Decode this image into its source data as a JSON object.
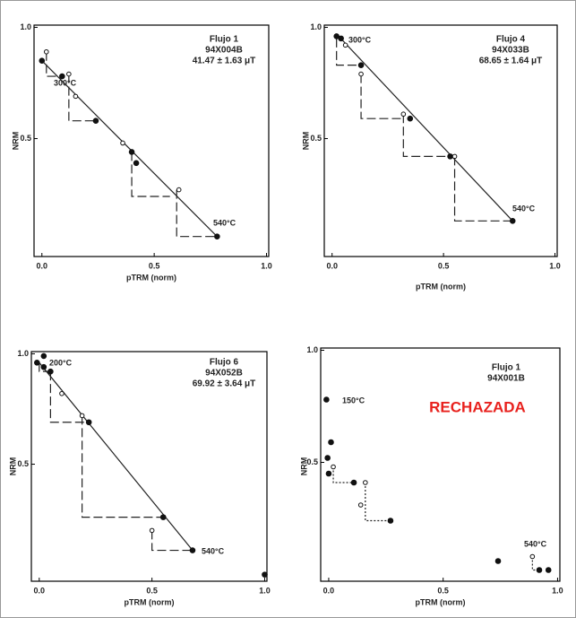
{
  "chart_data": [
    {
      "type": "scatter",
      "title_lines": [
        "Flujo  1",
        "94X004B",
        "41.47 ± 1.63 μT"
      ],
      "temp_labels": [
        "300°C",
        "540°C"
      ],
      "x_label": "pTRM (norm)",
      "y_label": "NRM",
      "xlim": [
        -0.035,
        1.01
      ],
      "ylim": [
        -0.03,
        1.01
      ],
      "xticks": [
        {
          "value": 0,
          "label": "0.0"
        },
        0.5,
        {
          "value": 1,
          "label": "1.0"
        }
      ],
      "yticks": [
        0.5,
        {
          "value": 1,
          "label": "1.0"
        }
      ],
      "points": {
        "x": [
          0,
          0.02,
          0.09,
          0.12,
          0.15,
          0.24,
          0.36,
          0.4,
          0.42,
          0.61,
          0.78
        ],
        "y": [
          0.85,
          0.89,
          0.78,
          0.79,
          0.69,
          0.58,
          0.48,
          0.44,
          0.39,
          0.27,
          0.06
        ],
        "filled": [
          true,
          false,
          true,
          false,
          false,
          true,
          false,
          true,
          true,
          false,
          true
        ]
      },
      "fit": {
        "x": [
          0,
          0.78
        ],
        "y": [
          0.85,
          0.06
        ]
      },
      "step_style": "dashed",
      "steps": [
        {
          "x": [
            0.02,
            0.02,
            0.09
          ],
          "y": [
            0.89,
            0.78,
            0.78
          ]
        },
        {
          "x": [
            0.12,
            0.12,
            0.24
          ],
          "y": [
            0.79,
            0.58,
            0.58
          ]
        },
        {
          "x": [
            0.4,
            0.4,
            0.57
          ],
          "y": [
            0.44,
            0.24,
            0.24
          ]
        },
        {
          "x": [
            0.6,
            0.6,
            0.78
          ],
          "y": [
            0.27,
            0.06,
            0.06
          ]
        }
      ]
    },
    {
      "type": "scatter",
      "title_lines": [
        "Flujo  4",
        "94X033B",
        "68.65 ± 1.64 μT"
      ],
      "temp_labels": [
        "300°C",
        "540°C"
      ],
      "x_label": "pTRM (norm)",
      "y_label": "NRM",
      "xlim": [
        -0.035,
        1.01
      ],
      "ylim": [
        -0.03,
        1.01
      ],
      "xticks": [
        {
          "value": 0,
          "label": "0.0"
        },
        0.5,
        {
          "value": 1,
          "label": "1.0"
        }
      ],
      "yticks": [
        0.5,
        {
          "value": 1,
          "label": "1.0"
        }
      ],
      "points": {
        "x": [
          0.02,
          0.04,
          0.06,
          0.13,
          0.13,
          0.32,
          0.35,
          0.53,
          0.55,
          0.81
        ],
        "y": [
          0.96,
          0.95,
          0.92,
          0.83,
          0.79,
          0.61,
          0.59,
          0.42,
          0.42,
          0.13
        ],
        "filled": [
          true,
          true,
          false,
          true,
          false,
          false,
          true,
          true,
          false,
          true
        ]
      },
      "fit": {
        "x": [
          0.02,
          0.81
        ],
        "y": [
          0.97,
          0.13
        ]
      },
      "step_style": "dashed",
      "steps": [
        {
          "x": [
            0.02,
            0.02,
            0.13
          ],
          "y": [
            0.95,
            0.83,
            0.83
          ]
        },
        {
          "x": [
            0.13,
            0.13,
            0.32
          ],
          "y": [
            0.79,
            0.59,
            0.59
          ]
        },
        {
          "x": [
            0.32,
            0.32,
            0.53
          ],
          "y": [
            0.61,
            0.42,
            0.42
          ]
        },
        {
          "x": [
            0.55,
            0.55,
            0.81
          ],
          "y": [
            0.42,
            0.13,
            0.13
          ]
        }
      ]
    },
    {
      "type": "scatter",
      "title_lines": [
        "Flujo  6",
        "94X052B",
        "69.92 ± 3.64 μT"
      ],
      "temp_labels": [
        "200°C",
        "540°C"
      ],
      "x_label": "pTRM (norm)",
      "y_label": "NRM",
      "xlim": [
        -0.035,
        1.01
      ],
      "ylim": [
        -0.03,
        1.01
      ],
      "xticks": [
        {
          "value": 0,
          "label": "0.0"
        },
        0.5,
        {
          "value": 1,
          "label": "1.0"
        }
      ],
      "yticks": [
        0.5,
        {
          "value": 1,
          "label": "1.0"
        }
      ],
      "points": {
        "x": [
          -0.01,
          0.02,
          0.02,
          0.05,
          0.1,
          0.19,
          0.22,
          0.55,
          0.5,
          0.68,
          1.0
        ],
        "y": [
          0.96,
          0.94,
          0.99,
          0.92,
          0.82,
          0.72,
          0.69,
          0.26,
          0.2,
          0.11,
          0.0
        ],
        "filled": [
          true,
          true,
          true,
          true,
          false,
          false,
          true,
          true,
          false,
          true,
          true
        ]
      },
      "fit": {
        "x": [
          0,
          0.68
        ],
        "y": [
          0.96,
          0.11
        ]
      },
      "step_style": "dashed",
      "steps": [
        {
          "x": [
            0,
            0,
            0.05
          ],
          "y": [
            0.96,
            0.92,
            0.92
          ]
        },
        {
          "x": [
            0.05,
            0.05,
            0.22
          ],
          "y": [
            0.92,
            0.69,
            0.69
          ]
        },
        {
          "x": [
            0.19,
            0.19,
            0.55
          ],
          "y": [
            0.72,
            0.26,
            0.26
          ]
        },
        {
          "x": [
            0.5,
            0.5,
            0.68
          ],
          "y": [
            0.2,
            0.11,
            0.11
          ]
        }
      ]
    },
    {
      "type": "scatter",
      "title_lines": [
        "Flujo  1",
        "94X001B"
      ],
      "status": "RECHAZADA",
      "status_color": "#e8211d",
      "temp_labels": [
        "150°C",
        "540°C"
      ],
      "x_label": "pTRM (norm)",
      "y_label": "NRM",
      "xlim": [
        -0.035,
        1.01
      ],
      "ylim": [
        -0.03,
        1.01
      ],
      "xticks": [
        {
          "value": 0,
          "label": "0.0"
        },
        0.5,
        {
          "value": 1,
          "label": "1.0"
        }
      ],
      "yticks": [
        0.5,
        {
          "value": 1,
          "label": "1.0"
        }
      ],
      "points": {
        "x": [
          -0.01,
          0.01,
          -0.005,
          0.02,
          0.0,
          0.11,
          0.16,
          0.14,
          0.27,
          0.74,
          0.89,
          0.92,
          0.96
        ],
        "y": [
          0.78,
          0.59,
          0.52,
          0.48,
          0.45,
          0.41,
          0.41,
          0.31,
          0.24,
          0.06,
          0.08,
          0.02,
          0.02
        ],
        "filled": [
          true,
          true,
          true,
          false,
          true,
          true,
          false,
          false,
          true,
          true,
          false,
          true,
          true
        ]
      },
      "step_style": "dotted",
      "steps": [
        {
          "x": [
            0.02,
            0.02,
            0.11
          ],
          "y": [
            0.48,
            0.41,
            0.41
          ]
        },
        {
          "x": [
            0.16,
            0.16,
            0.27
          ],
          "y": [
            0.41,
            0.24,
            0.24
          ]
        },
        {
          "x": [
            0.89,
            0.89,
            0.92
          ],
          "y": [
            0.08,
            0.02,
            0.02
          ]
        }
      ]
    }
  ]
}
